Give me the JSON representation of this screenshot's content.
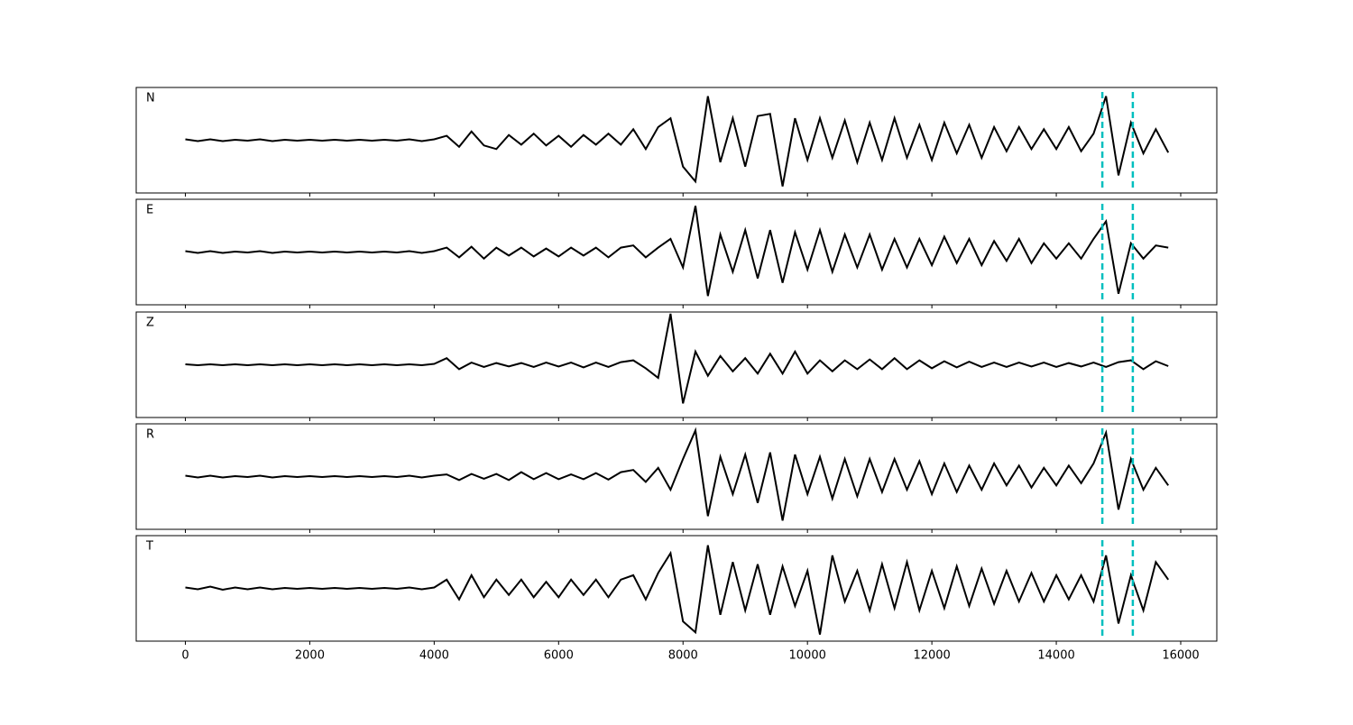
{
  "chart_data": [
    {
      "type": "line",
      "label": "N",
      "color": "#000000",
      "vline_color": "#00bfbf",
      "vlines": [
        14740,
        15230
      ],
      "xlim": [
        -790,
        16580
      ],
      "ylim": [
        -1.2,
        1.2
      ],
      "x": [
        0,
        200,
        400,
        600,
        800,
        1000,
        1200,
        1400,
        1600,
        1800,
        2000,
        2200,
        2400,
        2600,
        2800,
        3000,
        3200,
        3400,
        3600,
        3800,
        4000,
        4200,
        4400,
        4600,
        4800,
        5000,
        5200,
        5400,
        5600,
        5800,
        6000,
        6200,
        6400,
        6600,
        6800,
        7000,
        7200,
        7400,
        7600,
        7800,
        8000,
        8200,
        8400,
        8600,
        8800,
        9000,
        9200,
        9400,
        9600,
        9800,
        10000,
        10200,
        10400,
        10600,
        10800,
        11000,
        11200,
        11400,
        11600,
        11800,
        12000,
        12200,
        12400,
        12600,
        12800,
        13000,
        13200,
        13400,
        13600,
        13800,
        14000,
        14200,
        14400,
        14600,
        14800,
        15000,
        15200,
        15400,
        15600,
        15800
      ],
      "values": [
        0.02,
        -0.02,
        0.02,
        -0.02,
        0.01,
        -0.01,
        0.02,
        -0.02,
        0.01,
        -0.01,
        0.01,
        -0.01,
        0.01,
        -0.01,
        0.01,
        -0.01,
        0.01,
        -0.01,
        0.02,
        -0.02,
        0.02,
        0.1,
        -0.15,
        0.2,
        -0.12,
        -0.2,
        0.12,
        -0.1,
        0.15,
        -0.12,
        0.1,
        -0.15,
        0.12,
        -0.1,
        0.15,
        -0.1,
        0.25,
        -0.2,
        0.3,
        0.5,
        -0.6,
        -0.94,
        1.0,
        -0.5,
        0.5,
        -0.6,
        0.55,
        0.6,
        -1.05,
        0.5,
        -0.45,
        0.5,
        -0.4,
        0.45,
        -0.5,
        0.4,
        -0.45,
        0.5,
        -0.4,
        0.35,
        -0.45,
        0.4,
        -0.3,
        0.35,
        -0.4,
        0.3,
        -0.25,
        0.3,
        -0.2,
        0.25,
        -0.2,
        0.3,
        -0.25,
        0.15,
        1.0,
        -0.8,
        0.4,
        -0.3,
        0.25,
        -0.28
      ]
    },
    {
      "type": "line",
      "label": "E",
      "color": "#000000",
      "vline_color": "#00bfbf",
      "vlines": [
        14740,
        15230
      ],
      "xlim": [
        -790,
        16580
      ],
      "ylim": [
        -1.2,
        1.2
      ],
      "x": [
        0,
        200,
        400,
        600,
        800,
        1000,
        1200,
        1400,
        1600,
        1800,
        2000,
        2200,
        2400,
        2600,
        2800,
        3000,
        3200,
        3400,
        3600,
        3800,
        4000,
        4200,
        4400,
        4600,
        4800,
        5000,
        5200,
        5400,
        5600,
        5800,
        6000,
        6200,
        6400,
        6600,
        6800,
        7000,
        7200,
        7400,
        7600,
        7800,
        8000,
        8200,
        8400,
        8600,
        8800,
        9000,
        9200,
        9400,
        9600,
        9800,
        10000,
        10200,
        10400,
        10600,
        10800,
        11000,
        11200,
        11400,
        11600,
        11800,
        12000,
        12200,
        12400,
        12600,
        12800,
        13000,
        13200,
        13400,
        13600,
        13800,
        14000,
        14200,
        14400,
        14600,
        14800,
        15000,
        15200,
        15400,
        15600,
        15800
      ],
      "values": [
        0.02,
        -0.02,
        0.02,
        -0.02,
        0.01,
        -0.01,
        0.02,
        -0.02,
        0.01,
        -0.01,
        0.01,
        -0.01,
        0.01,
        -0.01,
        0.01,
        -0.01,
        0.01,
        -0.01,
        0.02,
        -0.02,
        0.02,
        0.1,
        -0.12,
        0.12,
        -0.15,
        0.1,
        -0.08,
        0.1,
        -0.1,
        0.08,
        -0.1,
        0.1,
        -0.08,
        0.1,
        -0.12,
        0.1,
        0.15,
        -0.12,
        0.1,
        0.3,
        -0.35,
        1.05,
        -1.0,
        0.4,
        -0.45,
        0.5,
        -0.6,
        0.5,
        -0.7,
        0.45,
        -0.4,
        0.5,
        -0.45,
        0.4,
        -0.35,
        0.4,
        -0.4,
        0.3,
        -0.35,
        0.3,
        -0.3,
        0.35,
        -0.25,
        0.3,
        -0.3,
        0.25,
        -0.2,
        0.3,
        -0.25,
        0.2,
        -0.15,
        0.2,
        -0.15,
        0.3,
        0.7,
        -0.95,
        0.2,
        -0.15,
        0.15,
        0.1
      ]
    },
    {
      "type": "line",
      "label": "Z",
      "color": "#000000",
      "vline_color": "#00bfbf",
      "vlines": [
        14740,
        15230
      ],
      "xlim": [
        -790,
        16580
      ],
      "ylim": [
        -1.2,
        1.2
      ],
      "x": [
        0,
        200,
        400,
        600,
        800,
        1000,
        1200,
        1400,
        1600,
        1800,
        2000,
        2200,
        2400,
        2600,
        2800,
        3000,
        3200,
        3400,
        3600,
        3800,
        4000,
        4200,
        4400,
        4600,
        4800,
        5000,
        5200,
        5400,
        5600,
        5800,
        6000,
        6200,
        6400,
        6600,
        6800,
        7000,
        7200,
        7400,
        7600,
        7800,
        8000,
        8200,
        8400,
        8600,
        8800,
        9000,
        9200,
        9400,
        9600,
        9800,
        10000,
        10200,
        10400,
        10600,
        10800,
        11000,
        11200,
        11400,
        11600,
        11800,
        12000,
        12200,
        12400,
        12600,
        12800,
        13000,
        13200,
        13400,
        13600,
        13800,
        14000,
        14200,
        14400,
        14600,
        14800,
        15000,
        15200,
        15400,
        15600,
        15800
      ],
      "values": [
        0.01,
        -0.01,
        0.01,
        -0.01,
        0.01,
        -0.01,
        0.01,
        -0.01,
        0.01,
        -0.01,
        0.01,
        -0.01,
        0.01,
        -0.01,
        0.01,
        -0.01,
        0.01,
        -0.01,
        0.01,
        -0.01,
        0.02,
        0.15,
        -0.1,
        0.05,
        -0.05,
        0.04,
        -0.04,
        0.04,
        -0.05,
        0.05,
        -0.04,
        0.05,
        -0.06,
        0.05,
        -0.05,
        0.06,
        0.1,
        -0.08,
        -0.3,
        1.16,
        -0.88,
        0.3,
        -0.25,
        0.2,
        -0.15,
        0.15,
        -0.2,
        0.25,
        -0.2,
        0.3,
        -0.2,
        0.1,
        -0.15,
        0.1,
        -0.1,
        0.12,
        -0.1,
        0.15,
        -0.1,
        0.1,
        -0.08,
        0.08,
        -0.06,
        0.07,
        -0.05,
        0.05,
        -0.05,
        0.05,
        -0.04,
        0.05,
        -0.05,
        0.04,
        -0.04,
        0.05,
        -0.05,
        0.06,
        0.1,
        -0.1,
        0.08,
        -0.03
      ]
    },
    {
      "type": "line",
      "label": "R",
      "color": "#000000",
      "vline_color": "#00bfbf",
      "vlines": [
        14740,
        15230
      ],
      "xlim": [
        -790,
        16580
      ],
      "ylim": [
        -1.2,
        1.2
      ],
      "x": [
        0,
        200,
        400,
        600,
        800,
        1000,
        1200,
        1400,
        1600,
        1800,
        2000,
        2200,
        2400,
        2600,
        2800,
        3000,
        3200,
        3400,
        3600,
        3800,
        4000,
        4200,
        4400,
        4600,
        4800,
        5000,
        5200,
        5400,
        5600,
        5800,
        6000,
        6200,
        6400,
        6600,
        6800,
        7000,
        7200,
        7400,
        7600,
        7800,
        8000,
        8200,
        8400,
        8600,
        8800,
        9000,
        9200,
        9400,
        9600,
        9800,
        10000,
        10200,
        10400,
        10600,
        10800,
        11000,
        11200,
        11400,
        11600,
        11800,
        12000,
        12200,
        12400,
        12600,
        12800,
        13000,
        13200,
        13400,
        13600,
        13800,
        14000,
        14200,
        14400,
        14600,
        14800,
        15000,
        15200,
        15400,
        15600,
        15800
      ],
      "values": [
        0.02,
        -0.02,
        0.02,
        -0.02,
        0.01,
        -0.01,
        0.02,
        -0.02,
        0.01,
        -0.01,
        0.01,
        -0.01,
        0.01,
        -0.01,
        0.01,
        -0.01,
        0.01,
        -0.01,
        0.02,
        -0.02,
        0.02,
        0.05,
        -0.08,
        0.06,
        -0.05,
        0.06,
        -0.08,
        0.1,
        -0.06,
        0.08,
        -0.06,
        0.05,
        -0.06,
        0.08,
        -0.07,
        0.1,
        0.15,
        -0.12,
        0.2,
        -0.3,
        0.4,
        1.05,
        -0.9,
        0.45,
        -0.4,
        0.5,
        -0.6,
        0.55,
        -1.0,
        0.5,
        -0.4,
        0.45,
        -0.5,
        0.4,
        -0.45,
        0.4,
        -0.35,
        0.4,
        -0.3,
        0.35,
        -0.4,
        0.3,
        -0.35,
        0.25,
        -0.3,
        0.3,
        -0.2,
        0.25,
        -0.25,
        0.2,
        -0.2,
        0.25,
        -0.15,
        0.3,
        1.0,
        -0.75,
        0.4,
        -0.3,
        0.2,
        -0.2
      ]
    },
    {
      "type": "line",
      "label": "T",
      "color": "#000000",
      "vline_color": "#00bfbf",
      "vlines": [
        14740,
        15230
      ],
      "xlim": [
        -790,
        16580
      ],
      "ylim": [
        -1.2,
        1.2
      ],
      "xticks": [
        0,
        2000,
        4000,
        6000,
        8000,
        10000,
        12000,
        14000,
        16000
      ],
      "x": [
        0,
        200,
        400,
        600,
        800,
        1000,
        1200,
        1400,
        1600,
        1800,
        2000,
        2200,
        2400,
        2600,
        2800,
        3000,
        3200,
        3400,
        3600,
        3800,
        4000,
        4200,
        4400,
        4600,
        4800,
        5000,
        5200,
        5400,
        5600,
        5800,
        6000,
        6200,
        6400,
        6600,
        6800,
        7000,
        7200,
        7400,
        7600,
        7800,
        8000,
        8200,
        8400,
        8600,
        8800,
        9000,
        9200,
        9400,
        9600,
        9800,
        10000,
        10200,
        10400,
        10600,
        10800,
        11000,
        11200,
        11400,
        11600,
        11800,
        12000,
        12200,
        12400,
        12600,
        12800,
        13000,
        13200,
        13400,
        13600,
        13800,
        14000,
        14200,
        14400,
        14600,
        14800,
        15000,
        15200,
        15400,
        15600,
        15800
      ],
      "values": [
        0.02,
        -0.02,
        0.04,
        -0.03,
        0.02,
        -0.02,
        0.02,
        -0.02,
        0.01,
        -0.01,
        0.01,
        -0.01,
        0.01,
        -0.01,
        0.01,
        -0.01,
        0.01,
        -0.01,
        0.02,
        -0.02,
        0.02,
        0.2,
        -0.25,
        0.3,
        -0.2,
        0.2,
        -0.15,
        0.2,
        -0.2,
        0.15,
        -0.2,
        0.2,
        -0.15,
        0.2,
        -0.2,
        0.2,
        0.3,
        -0.25,
        0.35,
        0.8,
        -0.75,
        -1.0,
        0.98,
        -0.6,
        0.6,
        -0.5,
        0.55,
        -0.6,
        0.5,
        -0.4,
        0.4,
        -1.05,
        0.75,
        -0.3,
        0.4,
        -0.5,
        0.55,
        -0.45,
        0.6,
        -0.5,
        0.4,
        -0.45,
        0.5,
        -0.4,
        0.45,
        -0.35,
        0.4,
        -0.3,
        0.35,
        -0.3,
        0.3,
        -0.25,
        0.3,
        -0.3,
        0.75,
        -0.8,
        0.3,
        -0.5,
        0.6,
        0.2
      ]
    }
  ]
}
